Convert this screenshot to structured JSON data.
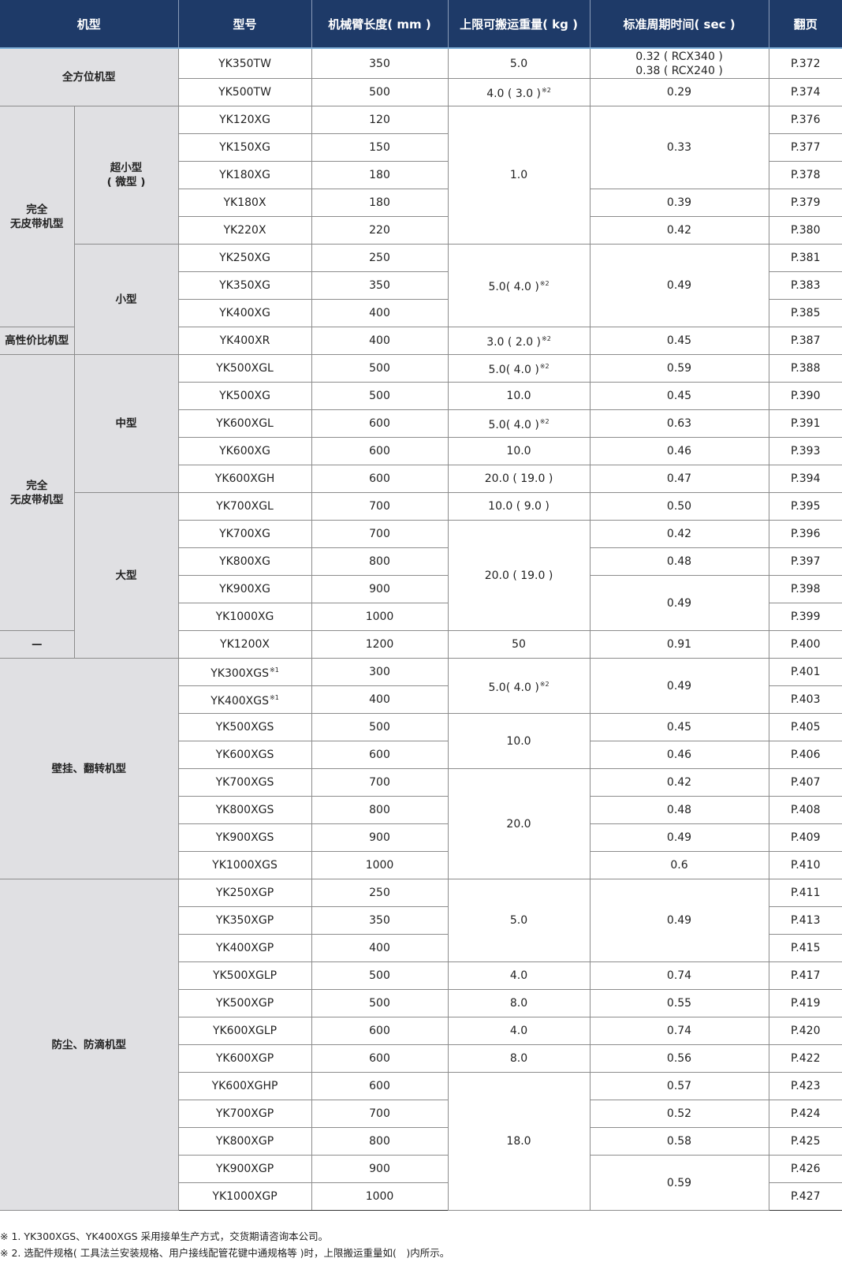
{
  "colors": {
    "header_bg": "#1e3a68",
    "category_bg": "#e0e0e3"
  },
  "headers": [
    "机型",
    "型号",
    "机械臂长度( mm )",
    "上限可搬运重量( kg )",
    "标准周期时间( sec )",
    "翻页"
  ],
  "outer_categories": [
    {
      "label": "全方位机型",
      "rows": 2,
      "wide": true
    },
    {
      "label": "完全\n无皮带机型",
      "rows": 8
    },
    {
      "label": "高性价比机型",
      "rows": 1
    },
    {
      "label": "完全\n无皮带机型",
      "rows": 10
    },
    {
      "label": "—",
      "rows": 1
    },
    {
      "label": "壁挂、翻转机型",
      "rows": 8,
      "wide": true
    },
    {
      "label": "防尘、防滴机型",
      "rows": 12,
      "wide": true
    }
  ],
  "sub_categories": [
    {
      "label": "超小型\n( 微型 )",
      "rows": 5
    },
    {
      "label": "小型",
      "rows": 4
    },
    {
      "label": "中型",
      "rows": 5
    },
    {
      "label": "大型",
      "rows": 6
    }
  ],
  "rows": [
    {
      "model": "YK350TW",
      "arm": "350",
      "payload": {
        "text": "5.0"
      },
      "cycle": "0.32 ( RCX340 )\n0.38 ( RCX240 )",
      "page": "P.372"
    },
    {
      "model": "YK500TW",
      "arm": "500",
      "payload": {
        "text": "4.0 ( 3.0 )",
        "note": "※2"
      },
      "cycle": "0.29",
      "page": "P.374"
    },
    {
      "model": "YK120XG",
      "arm": "120",
      "payload": {
        "text": "1.0"
      },
      "cycle": "0.33",
      "page": "P.376"
    },
    {
      "model": "YK150XG",
      "arm": "150",
      "payload": null,
      "cycle": null,
      "page": "P.377"
    },
    {
      "model": "YK180XG",
      "arm": "180",
      "payload": null,
      "cycle": null,
      "page": "P.378"
    },
    {
      "model": "YK180X",
      "arm": "180",
      "payload": null,
      "cycle": "0.39",
      "page": "P.379"
    },
    {
      "model": "YK220X",
      "arm": "220",
      "payload": null,
      "cycle": "0.42",
      "page": "P.380"
    },
    {
      "model": "YK250XG",
      "arm": "250",
      "payload": {
        "text": "5.0( 4.0 )",
        "note": "※2"
      },
      "cycle": "0.49",
      "page": "P.381"
    },
    {
      "model": "YK350XG",
      "arm": "350",
      "payload": null,
      "cycle": null,
      "page": "P.383"
    },
    {
      "model": "YK400XG",
      "arm": "400",
      "payload": null,
      "cycle": null,
      "page": "P.385"
    },
    {
      "model": "YK400XR",
      "arm": "400",
      "payload": {
        "text": "3.0 ( 2.0 )",
        "note": "※2"
      },
      "cycle": "0.45",
      "page": "P.387"
    },
    {
      "model": "YK500XGL",
      "arm": "500",
      "payload": {
        "text": "5.0( 4.0 )",
        "note": "※2"
      },
      "cycle": "0.59",
      "page": "P.388"
    },
    {
      "model": "YK500XG",
      "arm": "500",
      "payload": {
        "text": "10.0"
      },
      "cycle": "0.45",
      "page": "P.390"
    },
    {
      "model": "YK600XGL",
      "arm": "600",
      "payload": {
        "text": "5.0( 4.0 )",
        "note": "※2"
      },
      "cycle": "0.63",
      "page": "P.391"
    },
    {
      "model": "YK600XG",
      "arm": "600",
      "payload": {
        "text": "10.0"
      },
      "cycle": "0.46",
      "page": "P.393"
    },
    {
      "model": "YK600XGH",
      "arm": "600",
      "payload": {
        "text": "20.0 ( 19.0 )"
      },
      "cycle": "0.47",
      "page": "P.394"
    },
    {
      "model": "YK700XGL",
      "arm": "700",
      "payload": {
        "text": "10.0 ( 9.0 )"
      },
      "cycle": "0.50",
      "page": "P.395"
    },
    {
      "model": "YK700XG",
      "arm": "700",
      "payload": {
        "text": "20.0 ( 19.0 )"
      },
      "cycle": "0.42",
      "page": "P.396"
    },
    {
      "model": "YK800XG",
      "arm": "800",
      "payload": null,
      "cycle": "0.48",
      "page": "P.397"
    },
    {
      "model": "YK900XG",
      "arm": "900",
      "payload": null,
      "cycle": "0.49",
      "page": "P.398"
    },
    {
      "model": "YK1000XG",
      "arm": "1000",
      "payload": null,
      "cycle": null,
      "page": "P.399"
    },
    {
      "model": "YK1200X",
      "arm": "1200",
      "payload": {
        "text": "50"
      },
      "cycle": "0.91",
      "page": "P.400"
    },
    {
      "model": "YK300XGS",
      "model_note": "※1",
      "arm": "300",
      "payload": {
        "text": "5.0( 4.0 )",
        "note": "※2"
      },
      "cycle": "0.49",
      "page": "P.401"
    },
    {
      "model": "YK400XGS",
      "model_note": "※1",
      "arm": "400",
      "payload": null,
      "cycle": null,
      "page": "P.403"
    },
    {
      "model": "YK500XGS",
      "arm": "500",
      "payload": {
        "text": "10.0"
      },
      "cycle": "0.45",
      "page": "P.405"
    },
    {
      "model": "YK600XGS",
      "arm": "600",
      "payload": null,
      "cycle": "0.46",
      "page": "P.406"
    },
    {
      "model": "YK700XGS",
      "arm": "700",
      "payload": {
        "text": "20.0"
      },
      "cycle": "0.42",
      "page": "P.407"
    },
    {
      "model": "YK800XGS",
      "arm": "800",
      "payload": null,
      "cycle": "0.48",
      "page": "P.408"
    },
    {
      "model": "YK900XGS",
      "arm": "900",
      "payload": null,
      "cycle": "0.49",
      "page": "P.409"
    },
    {
      "model": "YK1000XGS",
      "arm": "1000",
      "payload": null,
      "cycle": "0.6",
      "page": "P.410"
    },
    {
      "model": "YK250XGP",
      "arm": "250",
      "payload": {
        "text": "5.0"
      },
      "cycle": "0.49",
      "page": "P.411"
    },
    {
      "model": "YK350XGP",
      "arm": "350",
      "payload": null,
      "cycle": null,
      "page": "P.413"
    },
    {
      "model": "YK400XGP",
      "arm": "400",
      "payload": null,
      "cycle": null,
      "page": "P.415"
    },
    {
      "model": "YK500XGLP",
      "arm": "500",
      "payload": {
        "text": "4.0"
      },
      "cycle": "0.74",
      "page": "P.417"
    },
    {
      "model": "YK500XGP",
      "arm": "500",
      "payload": {
        "text": "8.0"
      },
      "cycle": "0.55",
      "page": "P.419"
    },
    {
      "model": "YK600XGLP",
      "arm": "600",
      "payload": {
        "text": "4.0"
      },
      "cycle": "0.74",
      "page": "P.420"
    },
    {
      "model": "YK600XGP",
      "arm": "600",
      "payload": {
        "text": "8.0"
      },
      "cycle": "0.56",
      "page": "P.422"
    },
    {
      "model": "YK600XGHP",
      "arm": "600",
      "payload": {
        "text": "18.0"
      },
      "cycle": "0.57",
      "page": "P.423"
    },
    {
      "model": "YK700XGP",
      "arm": "700",
      "payload": null,
      "cycle": "0.52",
      "page": "P.424"
    },
    {
      "model": "YK800XGP",
      "arm": "800",
      "payload": null,
      "cycle": "0.58",
      "page": "P.425"
    },
    {
      "model": "YK900XGP",
      "arm": "900",
      "payload": null,
      "cycle": "0.59",
      "page": "P.426"
    },
    {
      "model": "YK1000XGP",
      "arm": "1000",
      "payload": null,
      "cycle": null,
      "page": "P.427"
    }
  ],
  "notes": [
    "※ 1. YK300XGS、YK400XGS 采用接单生产方式，交货期请咨询本公司。",
    "※ 2. 选配件规格( 工具法兰安装规格、用户接线配管花键中通规格等 )时，上限搬运重量如(　)内所示。"
  ]
}
